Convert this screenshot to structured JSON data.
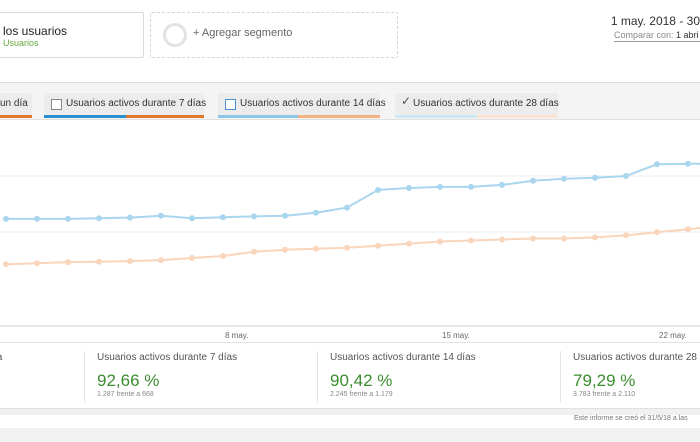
{
  "segment": {
    "title": "los usuarios",
    "subtitle": "Usuarios"
  },
  "add_segment": {
    "label": "+ Agregar segmento"
  },
  "date": {
    "range": "1 may. 2018 - 30",
    "compare_prefix": "Comparar con:",
    "compare_value": "1 abri"
  },
  "chips": [
    {
      "label": "un día",
      "checked": false
    },
    {
      "label": "Usuarios activos durante 7 días",
      "checked": false
    },
    {
      "label": "Usuarios activos durante 14 días",
      "checked": false
    },
    {
      "label": "Usuarios activos durante 28 días",
      "checked": true
    }
  ],
  "colors": {
    "series_current": "#a9d6ee",
    "series_previous": "#f8d5bb",
    "metric_green": "#3b8c2f",
    "orange": "#e07a2a",
    "blue": "#2a8fcf"
  },
  "chart_data": {
    "type": "line",
    "x_ticks": [
      "8 may.",
      "15 may.",
      "22 may."
    ],
    "series": [
      {
        "values": [
          52,
          52,
          52,
          52.3,
          52.6,
          53.5,
          52.3,
          52.8,
          53.2,
          53.5,
          55,
          57.5,
          66,
          67,
          67.5,
          67.5,
          68.5,
          70.5,
          71.5,
          72,
          72.8,
          78.5,
          78.8,
          78.8
        ]
      },
      {
        "values": [
          30,
          30.5,
          31,
          31.2,
          31.5,
          32,
          33,
          34,
          36,
          37,
          37.5,
          38,
          39,
          40,
          41,
          41.5,
          42,
          42.5,
          42.5,
          43,
          44,
          45.5,
          47,
          48.5
        ]
      }
    ]
  },
  "metrics": [
    {
      "title": "ía",
      "value": "",
      "sub": ""
    },
    {
      "title": "Usuarios activos durante 7 días",
      "value": "92,66 %",
      "sub": "1.287 frente a 668"
    },
    {
      "title": "Usuarios activos durante 14 días",
      "value": "90,42 %",
      "sub": "2.245 frente a 1.179"
    },
    {
      "title": "Usuarios activos durante 28 días",
      "value": "79,29 %",
      "sub": "3.783 frente a 2.110"
    }
  ],
  "footer": {
    "text": "Este informe se creó el 31/5/18 a las"
  }
}
